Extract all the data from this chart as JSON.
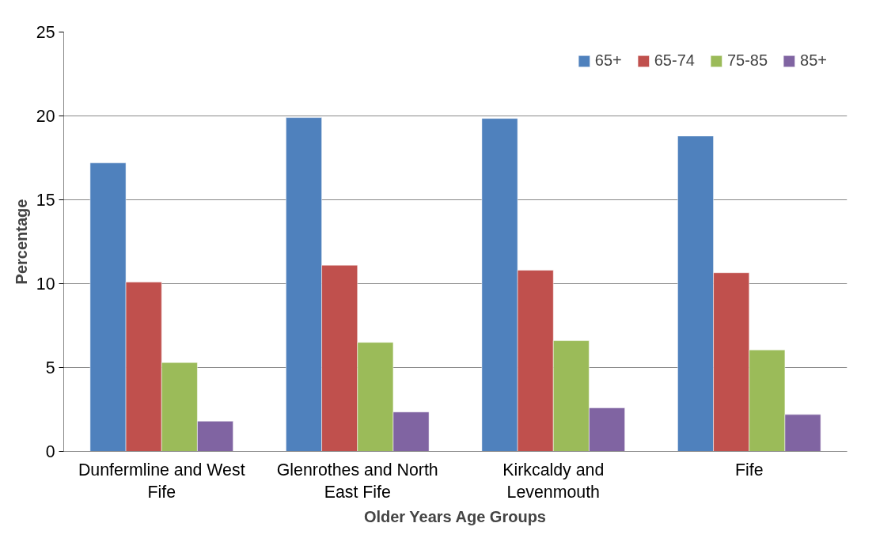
{
  "chart_data": {
    "type": "bar",
    "xlabel": "Older Years Age Groups",
    "ylabel": "Percentage",
    "categories": [
      "Dunfermline and West Fife",
      "Glenrothes and North East Fife",
      "Kirkcaldy and Levenmouth",
      "Fife"
    ],
    "series": [
      {
        "name": "65+",
        "color": "#4f81bd",
        "values": [
          17.2,
          19.9,
          19.85,
          18.8
        ]
      },
      {
        "name": "65-74",
        "color": "#c0504d",
        "values": [
          10.1,
          11.1,
          10.8,
          10.65
        ]
      },
      {
        "name": "75-85",
        "color": "#9bbb59",
        "values": [
          5.3,
          6.5,
          6.6,
          6.05
        ]
      },
      {
        "name": "85+",
        "color": "#8064a2",
        "values": [
          1.8,
          2.35,
          2.6,
          2.2
        ]
      }
    ],
    "ylim": [
      0,
      25
    ],
    "yticks": [
      0,
      5,
      10,
      15,
      20,
      25
    ],
    "grid": "y",
    "legend": "top right"
  }
}
